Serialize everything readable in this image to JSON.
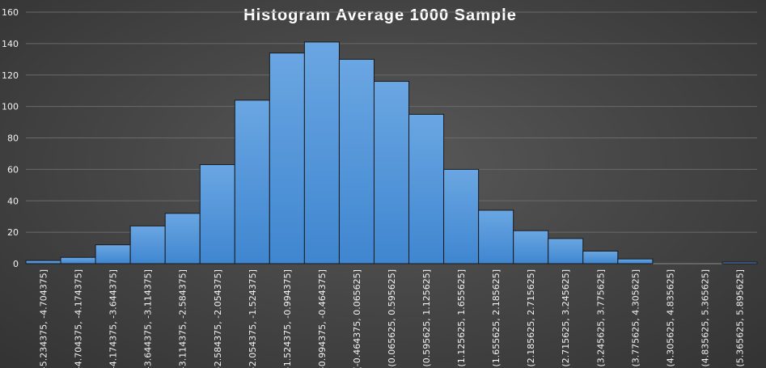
{
  "chart_data": {
    "type": "bar",
    "title": "Histogram Average 1000 Sample",
    "xlabel": "",
    "ylabel": "",
    "ylim": [
      0,
      160
    ],
    "yticks": [
      0,
      20,
      40,
      60,
      80,
      100,
      120,
      140,
      160
    ],
    "grid": true,
    "legend": "none",
    "bar_color": "#4a90d9",
    "categories": [
      "[-5.234375, -4.704375]",
      "(-4.704375, -4.174375]",
      "(-4.174375, -3.644375]",
      "(-3.644375, -3.114375]",
      "(-3.114375, -2.584375]",
      "(-2.584375, -2.054375]",
      "(-2.054375, -1.524375]",
      "(-1.524375, -0.994375]",
      "(-0.994375, -0.464375]",
      "(-0.464375, 0.065625]",
      "(0.065625, 0.595625]",
      "(0.595625, 1.125625]",
      "(1.125625, 1.655625]",
      "(1.655625, 2.185625]",
      "(2.185625, 2.715625]",
      "(2.715625, 3.245625]",
      "(3.245625, 3.775625]",
      "(3.775625, 4.305625]",
      "(4.305625, 4.835625]",
      "(4.835625, 5.365625]",
      "(5.365625, 5.895625]"
    ],
    "values": [
      2,
      4,
      12,
      24,
      32,
      63,
      104,
      134,
      141,
      130,
      116,
      95,
      60,
      34,
      21,
      16,
      8,
      3,
      0,
      0,
      1
    ]
  }
}
